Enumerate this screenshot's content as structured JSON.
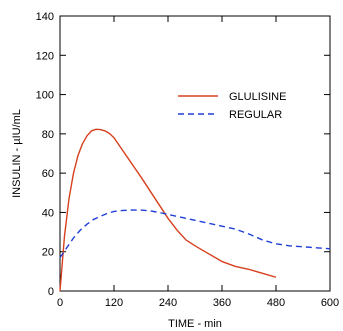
{
  "colors": {
    "background": "#ffffff",
    "axis": "#000000",
    "glulisine": "#d7401e",
    "regular": "#1f3fd8"
  },
  "chart_data": {
    "type": "line",
    "title": "",
    "xlabel": "TIME - min",
    "ylabel": "INSULIN - µIU/mL",
    "xlim": [
      0,
      600
    ],
    "ylim": [
      0,
      140
    ],
    "xticks": [
      0,
      120,
      240,
      360,
      480,
      600
    ],
    "yticks": [
      0,
      20,
      40,
      60,
      80,
      100,
      120,
      140
    ],
    "grid": false,
    "legend_position": "upper-right",
    "series": [
      {
        "name": "GLULISINE",
        "style": "solid",
        "color": "#d7401e",
        "x": [
          0,
          10,
          20,
          30,
          40,
          50,
          60,
          70,
          80,
          90,
          100,
          110,
          120,
          135,
          150,
          165,
          180,
          200,
          220,
          240,
          260,
          280,
          300,
          330,
          360,
          390,
          420,
          450,
          480
        ],
        "y": [
          0,
          28,
          47,
          60,
          69,
          75,
          79,
          81.5,
          82.3,
          82.2,
          81.5,
          80.2,
          78,
          73,
          68,
          63,
          58,
          51,
          44,
          37,
          31,
          26,
          23,
          19,
          15,
          12.5,
          11,
          9,
          7
        ]
      },
      {
        "name": "REGULAR",
        "style": "dashed",
        "color": "#1f3fd8",
        "x": [
          0,
          15,
          30,
          45,
          60,
          75,
          90,
          105,
          120,
          140,
          160,
          180,
          200,
          220,
          240,
          270,
          300,
          330,
          360,
          390,
          420,
          450,
          480,
          510,
          540,
          570,
          600
        ],
        "y": [
          17,
          22,
          27,
          31,
          34,
          36.5,
          38,
          39.5,
          40.5,
          41,
          41.2,
          41.2,
          40.8,
          40,
          39,
          37.5,
          36,
          34.5,
          33,
          31.5,
          29,
          26,
          24,
          23,
          22.5,
          22,
          21.5
        ]
      }
    ]
  }
}
